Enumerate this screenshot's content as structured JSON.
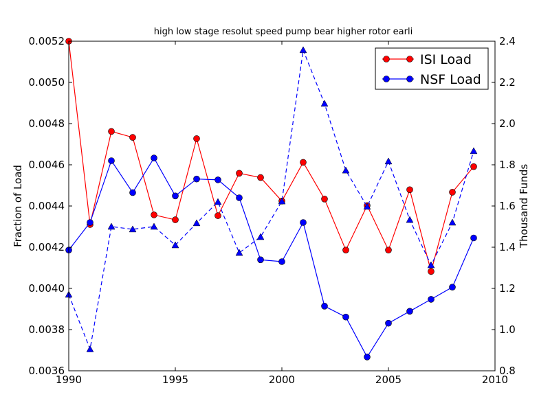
{
  "chart_data": {
    "type": "line",
    "title": "high low stage resolut speed pump bear higher rotor earli",
    "xlabel": "",
    "ylabel": "Fraction of Load",
    "y2label": "Thousand Funds",
    "xlim": [
      1990,
      2010
    ],
    "ylim": [
      0.0036,
      0.0052
    ],
    "y2lim": [
      0.8,
      2.4
    ],
    "x_ticks": [
      "1990",
      "1995",
      "2000",
      "2005",
      "2010"
    ],
    "y_ticks": [
      "0.0036",
      "0.0038",
      "0.0040",
      "0.0042",
      "0.0044",
      "0.0046",
      "0.0048",
      "0.0050",
      "0.0052"
    ],
    "y2_ticks": [
      "0.8",
      "1.0",
      "1.2",
      "1.4",
      "1.6",
      "1.8",
      "2.0",
      "2.2",
      "2.4"
    ],
    "legend_position": "top-right",
    "x": [
      1990,
      1991,
      1992,
      1993,
      1994,
      1995,
      1996,
      1997,
      1998,
      1999,
      2000,
      2001,
      2002,
      2003,
      2004,
      2005,
      2006,
      2007,
      2008,
      2009
    ],
    "series": [
      {
        "name": "ISI Load",
        "axis": "left",
        "color": "#ff0000",
        "style": "solid",
        "marker": "circle",
        "values": [
          0.0052,
          0.00431,
          0.004762,
          0.004733,
          0.004357,
          0.004333,
          0.004727,
          0.004353,
          0.004559,
          0.004538,
          0.004424,
          0.004612,
          0.004434,
          0.004186,
          0.004402,
          0.004186,
          0.004479,
          0.004082,
          0.004467,
          0.004591
        ]
      },
      {
        "name": "NSF Load",
        "axis": "left",
        "color": "#0000ff",
        "style": "solid",
        "marker": "circle",
        "values": [
          0.004186,
          0.00432,
          0.00462,
          0.004465,
          0.004633,
          0.004449,
          0.004531,
          0.004527,
          0.00444,
          0.004139,
          0.00413,
          0.00432,
          0.003914,
          0.003861,
          0.003667,
          0.003831,
          0.003889,
          0.003947,
          0.004006,
          0.004245
        ]
      },
      {
        "name": "",
        "axis": "right",
        "color": "#0000ff",
        "style": "dashed",
        "marker": "triangle",
        "values": [
          1.17,
          0.905,
          1.5,
          1.487,
          1.5,
          1.41,
          1.517,
          1.62,
          1.373,
          1.45,
          1.623,
          2.357,
          2.097,
          1.773,
          1.597,
          1.817,
          1.533,
          1.313,
          1.52,
          1.867
        ]
      }
    ]
  }
}
